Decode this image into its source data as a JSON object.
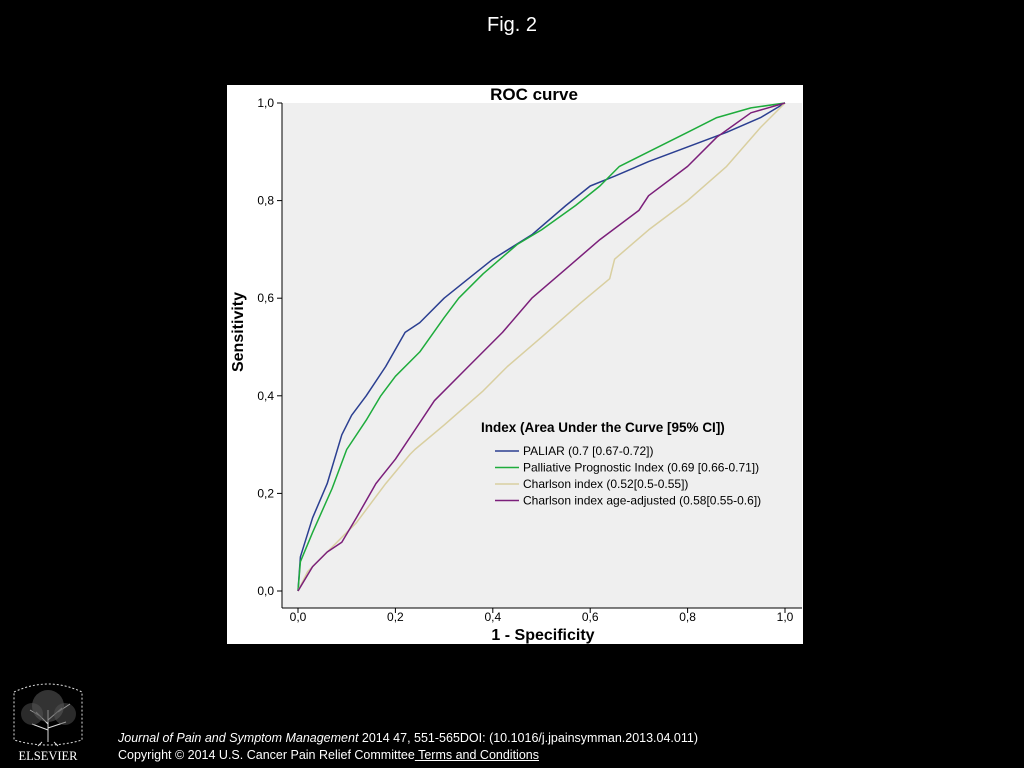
{
  "figure": {
    "title": "Fig. 2"
  },
  "chart_data": {
    "type": "line",
    "title": "ROC curve",
    "xlabel": "1 - Specificity",
    "ylabel": "Sensitivity",
    "xlim": [
      0,
      1
    ],
    "ylim": [
      0,
      1
    ],
    "x_ticks": [
      "0,0",
      "0,2",
      "0,4",
      "0,6",
      "0,8",
      "1,0"
    ],
    "y_ticks": [
      "0,0",
      "0,2",
      "0,4",
      "0,6",
      "0,8",
      "1,0"
    ],
    "grid": false,
    "legend_title": "Index (Area Under the Curve [95% CI])",
    "legend_position": "bottom-right",
    "series": [
      {
        "name": "PALIAR (0.7 [0.67-0.72])",
        "color": "#2b3f91",
        "x": [
          0,
          0.005,
          0.03,
          0.06,
          0.09,
          0.11,
          0.14,
          0.18,
          0.22,
          0.25,
          0.3,
          0.35,
          0.4,
          0.48,
          0.55,
          0.6,
          0.65,
          0.72,
          0.8,
          0.88,
          0.95,
          1.0
        ],
        "y": [
          0,
          0.07,
          0.15,
          0.22,
          0.32,
          0.36,
          0.4,
          0.46,
          0.53,
          0.55,
          0.6,
          0.64,
          0.68,
          0.73,
          0.79,
          0.83,
          0.85,
          0.88,
          0.91,
          0.94,
          0.97,
          1.0
        ]
      },
      {
        "name": "Palliative Prognostic Index (0.69 [0.66-0.71])",
        "color": "#1eac3c",
        "x": [
          0,
          0.005,
          0.03,
          0.07,
          0.1,
          0.14,
          0.17,
          0.2,
          0.25,
          0.3,
          0.33,
          0.38,
          0.45,
          0.5,
          0.57,
          0.62,
          0.66,
          0.72,
          0.8,
          0.86,
          0.93,
          1.0
        ],
        "y": [
          0,
          0.06,
          0.12,
          0.21,
          0.29,
          0.35,
          0.4,
          0.44,
          0.49,
          0.56,
          0.6,
          0.65,
          0.71,
          0.74,
          0.79,
          0.83,
          0.87,
          0.9,
          0.94,
          0.97,
          0.99,
          1.0
        ]
      },
      {
        "name": "Charlson index (0.52[0.5-0.55])",
        "color": "#d9cfa0",
        "x": [
          0,
          0.02,
          0.07,
          0.12,
          0.18,
          0.23,
          0.24,
          0.3,
          0.38,
          0.42,
          0.43,
          0.5,
          0.58,
          0.64,
          0.65,
          0.72,
          0.8,
          0.88,
          0.95,
          1.0
        ],
        "y": [
          0,
          0.04,
          0.09,
          0.14,
          0.22,
          0.28,
          0.29,
          0.34,
          0.41,
          0.45,
          0.46,
          0.52,
          0.59,
          0.64,
          0.68,
          0.74,
          0.8,
          0.87,
          0.95,
          1.0
        ]
      },
      {
        "name": "Charlson index age-adjusted (0.58[0.55-0.6])",
        "color": "#7b1f7a",
        "x": [
          0,
          0.03,
          0.06,
          0.09,
          0.12,
          0.16,
          0.2,
          0.24,
          0.28,
          0.35,
          0.42,
          0.48,
          0.55,
          0.62,
          0.7,
          0.72,
          0.8,
          0.86,
          0.93,
          1.0
        ],
        "y": [
          0,
          0.05,
          0.08,
          0.1,
          0.15,
          0.22,
          0.27,
          0.33,
          0.39,
          0.46,
          0.53,
          0.6,
          0.66,
          0.72,
          0.78,
          0.81,
          0.87,
          0.93,
          0.98,
          1.0
        ]
      }
    ]
  },
  "footer": {
    "publisher": "ELSEVIER",
    "journal": "Journal of Pain and Symptom Management",
    "citation": " 2014 47, 551-565DOI: (10.1016/j.jpainsymman.2013.04.011)",
    "copyright": "Copyright © 2014 U.S. Cancer Pain Relief Committee",
    "terms_link": " Terms and Conditions"
  }
}
